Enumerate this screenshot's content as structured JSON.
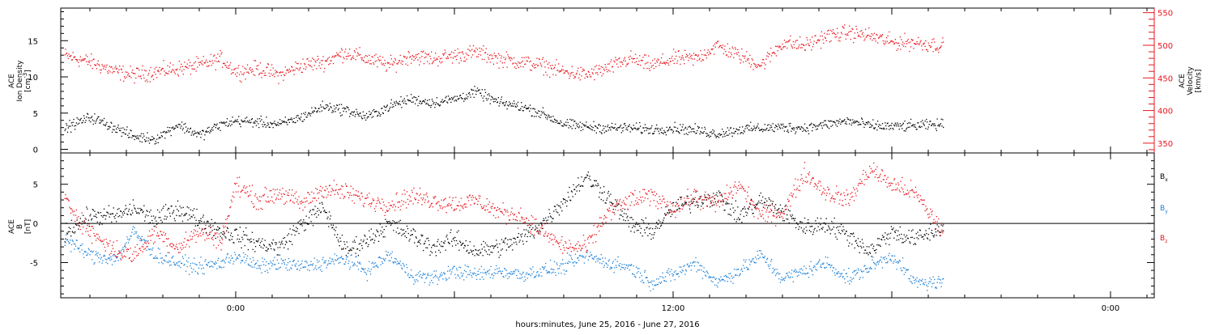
{
  "chart_data": [
    {
      "type": "scatter",
      "panel": "top",
      "xlabel": "hours:minutes, June 25, 2016 - June 27, 2016",
      "x_tick_labels": [
        "0:00",
        "12:00",
        "0:00"
      ],
      "x_ticks_hours": [
        0,
        12,
        24
      ],
      "xlim_hours": [
        -4.8,
        25.2
      ],
      "data_span_hours": [
        -4.7,
        19.4
      ],
      "ylabel_left": [
        "ACE",
        "Ion Density",
        "[cm^-3]"
      ],
      "ylim_left": [
        -0.5,
        19.5
      ],
      "yticks_left": [
        0,
        5,
        10,
        15
      ],
      "ylabel_right": [
        "ACE",
        "Velocity",
        "[km/s]"
      ],
      "ylim_right": [
        335,
        557
      ],
      "yticks_right": [
        350,
        400,
        450,
        500,
        550
      ],
      "colors": {
        "density": "#000000",
        "velocity": "#e8141c"
      },
      "series": [
        {
          "axis": "left",
          "x": [
            -4.7,
            -4.0,
            -3.3,
            -2.8,
            -2.2,
            -1.6,
            -1.0,
            -0.4,
            0.0,
            0.6,
            1.2,
            1.8,
            2.4,
            3.0,
            3.6,
            4.2,
            4.8,
            5.4,
            6.0,
            6.6,
            7.2,
            7.8,
            8.4,
            9.0,
            9.6,
            10.2,
            10.8,
            11.4,
            12.0,
            12.6,
            13.2,
            13.8,
            14.4,
            15.0,
            15.6,
            16.2,
            16.8,
            17.4,
            18.0,
            18.6,
            19.4
          ],
          "y": [
            3.0,
            4.5,
            3.0,
            1.8,
            1.5,
            3.5,
            2.0,
            3.5,
            4.0,
            3.8,
            3.5,
            4.5,
            6.0,
            5.5,
            4.5,
            6.0,
            7.0,
            6.5,
            7.0,
            8.0,
            6.5,
            6.0,
            5.0,
            3.5,
            3.2,
            3.0,
            3.0,
            2.8,
            3.0,
            2.7,
            2.2,
            2.8,
            3.0,
            3.1,
            3.0,
            3.5,
            4.0,
            3.3,
            3.2,
            3.3,
            3.5
          ]
        },
        {
          "axis": "right",
          "x": [
            -4.7,
            -4.0,
            -3.3,
            -2.8,
            -2.2,
            -1.6,
            -1.0,
            -0.4,
            0.0,
            0.6,
            1.2,
            1.8,
            2.4,
            3.0,
            3.6,
            4.2,
            4.8,
            5.4,
            6.0,
            6.6,
            7.2,
            7.8,
            8.4,
            9.0,
            9.6,
            10.2,
            10.8,
            11.4,
            12.0,
            12.6,
            13.2,
            13.8,
            14.4,
            15.0,
            15.6,
            16.2,
            16.8,
            17.4,
            18.0,
            18.6,
            19.4
          ],
          "y": [
            485,
            475,
            460,
            455,
            460,
            465,
            470,
            480,
            460,
            465,
            455,
            470,
            475,
            490,
            480,
            470,
            485,
            480,
            485,
            490,
            480,
            475,
            470,
            460,
            455,
            465,
            480,
            470,
            480,
            480,
            500,
            485,
            470,
            505,
            500,
            515,
            520,
            515,
            505,
            505,
            500
          ]
        }
      ]
    },
    {
      "type": "scatter",
      "panel": "bottom",
      "ylabel": [
        "ACE",
        "B",
        "[nT]"
      ],
      "ylim": [
        -9.5,
        9.0
      ],
      "yticks": [
        -5,
        0,
        5
      ],
      "legend": [
        "Bx",
        "By",
        "Bz"
      ],
      "legend_placement": "right",
      "colors": {
        "Bx": "#000000",
        "By": "#1a7fd6",
        "Bz": "#e8141c"
      },
      "series": [
        {
          "name": "Bx",
          "x": [
            -4.7,
            -4.0,
            -3.3,
            -2.8,
            -2.2,
            -1.6,
            -1.0,
            -0.4,
            0.0,
            0.6,
            1.2,
            1.8,
            2.4,
            3.0,
            3.6,
            4.2,
            4.8,
            5.4,
            6.0,
            6.6,
            7.2,
            7.8,
            8.4,
            9.0,
            9.6,
            10.2,
            10.8,
            11.4,
            12.0,
            12.6,
            13.2,
            13.8,
            14.4,
            15.0,
            15.6,
            16.2,
            16.8,
            17.4,
            18.0,
            18.6,
            19.4
          ],
          "y": [
            -1.0,
            1.0,
            1.0,
            2.0,
            0.5,
            2.0,
            0.5,
            -1.0,
            -1.5,
            -2.5,
            -3.0,
            0.0,
            2.0,
            -3.5,
            -2.0,
            0.0,
            -1.5,
            -3.0,
            -2.0,
            -3.5,
            -3.0,
            -2.0,
            0.0,
            3.0,
            6.0,
            3.5,
            0.0,
            -1.0,
            2.0,
            3.0,
            3.5,
            1.0,
            3.0,
            1.5,
            -0.5,
            0.0,
            -1.5,
            -3.5,
            -1.0,
            -2.0,
            -0.5
          ]
        },
        {
          "name": "By",
          "x": [
            -4.7,
            -4.0,
            -3.3,
            -2.8,
            -2.2,
            -1.6,
            -1.0,
            -0.4,
            0.0,
            0.6,
            1.2,
            1.8,
            2.4,
            3.0,
            3.6,
            4.2,
            4.8,
            5.4,
            6.0,
            6.6,
            7.2,
            7.8,
            8.4,
            9.0,
            9.6,
            10.2,
            10.8,
            11.4,
            12.0,
            12.6,
            13.2,
            13.8,
            14.4,
            15.0,
            15.6,
            16.2,
            16.8,
            17.4,
            18.0,
            18.6,
            19.4
          ],
          "y": [
            -2.0,
            -4.0,
            -4.5,
            -1.0,
            -4.0,
            -5.0,
            -5.5,
            -5.0,
            -4.0,
            -5.5,
            -5.0,
            -5.5,
            -5.0,
            -4.5,
            -6.0,
            -4.0,
            -6.5,
            -7.0,
            -6.0,
            -6.5,
            -6.0,
            -6.5,
            -6.0,
            -5.5,
            -4.0,
            -5.0,
            -5.5,
            -7.5,
            -6.5,
            -5.0,
            -7.5,
            -6.0,
            -4.0,
            -7.0,
            -6.0,
            -5.0,
            -7.0,
            -5.5,
            -4.0,
            -7.5,
            -7.5
          ]
        },
        {
          "name": "Bz",
          "x": [
            -4.7,
            -4.0,
            -3.3,
            -2.8,
            -2.2,
            -1.6,
            -1.0,
            -0.4,
            0.0,
            0.6,
            1.2,
            1.8,
            2.4,
            3.0,
            3.6,
            4.2,
            4.8,
            5.4,
            6.0,
            6.6,
            7.2,
            7.8,
            8.4,
            9.0,
            9.6,
            10.2,
            10.8,
            11.4,
            12.0,
            12.6,
            13.2,
            13.8,
            14.4,
            15.0,
            15.6,
            16.2,
            16.8,
            17.4,
            18.0,
            18.6,
            19.4
          ],
          "y": [
            3.0,
            -1.0,
            -3.5,
            -4.0,
            -1.0,
            -3.0,
            -1.0,
            -2.0,
            5.0,
            3.0,
            4.0,
            2.5,
            4.5,
            4.0,
            3.0,
            2.5,
            3.5,
            3.0,
            2.5,
            3.0,
            1.5,
            1.0,
            -1.0,
            -3.0,
            -3.0,
            1.5,
            3.0,
            3.5,
            2.0,
            3.5,
            2.5,
            5.0,
            1.0,
            1.5,
            6.5,
            4.0,
            3.0,
            7.0,
            5.0,
            4.0,
            -1.0
          ]
        }
      ]
    }
  ]
}
